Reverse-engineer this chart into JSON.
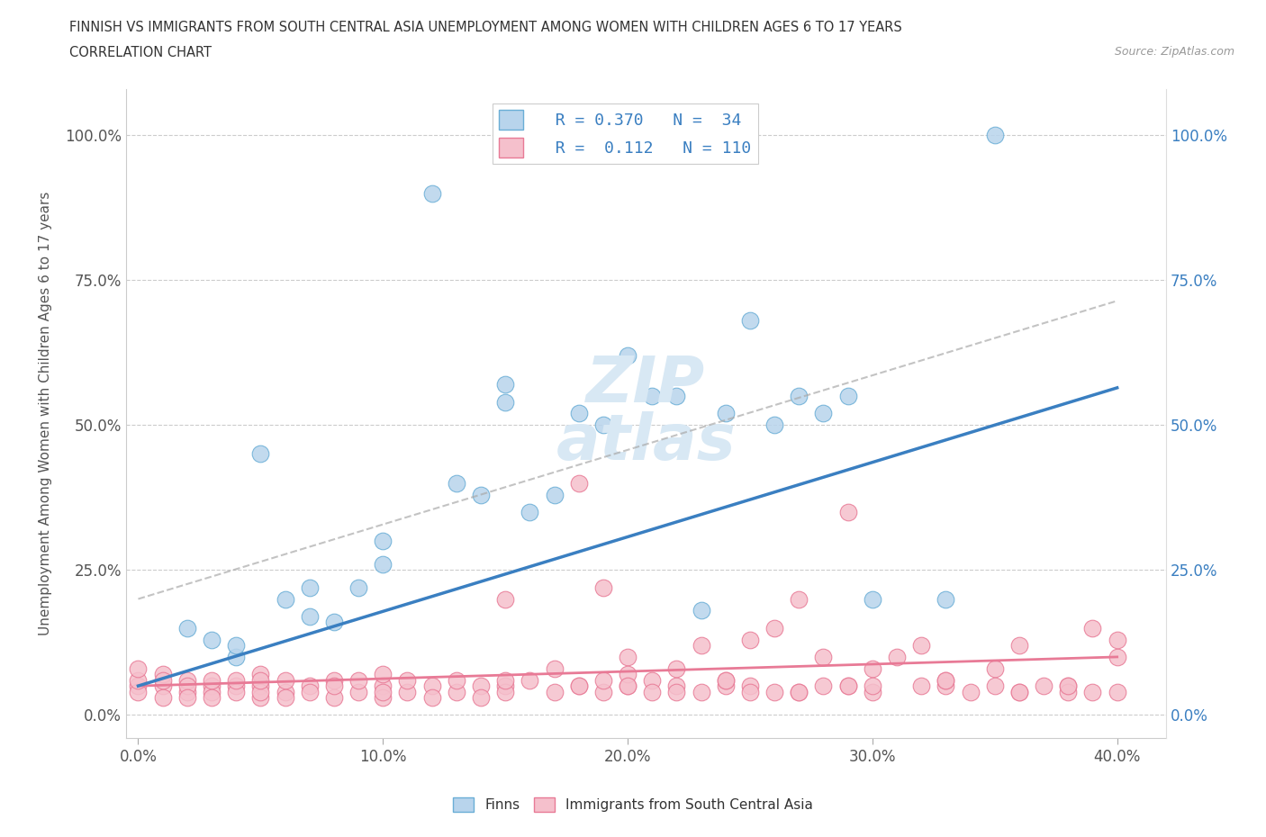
{
  "title_line1": "FINNISH VS IMMIGRANTS FROM SOUTH CENTRAL ASIA UNEMPLOYMENT AMONG WOMEN WITH CHILDREN AGES 6 TO 17 YEARS",
  "title_line2": "CORRELATION CHART",
  "source": "Source: ZipAtlas.com",
  "ylabel": "Unemployment Among Women with Children Ages 6 to 17 years",
  "xlim": [
    -0.005,
    0.42
  ],
  "ylim": [
    -0.04,
    1.08
  ],
  "xtick_labels": [
    "0.0%",
    "10.0%",
    "20.0%",
    "30.0%",
    "40.0%"
  ],
  "xtick_vals": [
    0.0,
    0.1,
    0.2,
    0.3,
    0.4
  ],
  "ytick_labels": [
    "0.0%",
    "25.0%",
    "50.0%",
    "75.0%",
    "100.0%"
  ],
  "ytick_vals": [
    0.0,
    0.25,
    0.5,
    0.75,
    1.0
  ],
  "legend_r1": "R = 0.370",
  "legend_n1": "N =  34",
  "legend_r2": "R =  0.112",
  "legend_n2": "N = 110",
  "color_finns_fill": "#b8d4ec",
  "color_finns_edge": "#6aaed6",
  "color_imm_fill": "#f5c0cc",
  "color_imm_edge": "#e87a96",
  "color_line_finns": "#3a7fc1",
  "color_line_imm": "#e87a96",
  "watermark_color": "#d8e8f4",
  "finns_x": [
    0.02,
    0.03,
    0.04,
    0.04,
    0.05,
    0.06,
    0.07,
    0.07,
    0.08,
    0.09,
    0.1,
    0.1,
    0.12,
    0.13,
    0.14,
    0.15,
    0.15,
    0.16,
    0.17,
    0.18,
    0.19,
    0.2,
    0.21,
    0.22,
    0.23,
    0.24,
    0.25,
    0.26,
    0.27,
    0.28,
    0.29,
    0.3,
    0.33,
    0.35
  ],
  "finns_y": [
    0.15,
    0.13,
    0.1,
    0.12,
    0.45,
    0.2,
    0.17,
    0.22,
    0.16,
    0.22,
    0.26,
    0.3,
    0.9,
    0.4,
    0.38,
    0.54,
    0.57,
    0.35,
    0.38,
    0.52,
    0.5,
    0.62,
    0.55,
    0.55,
    0.18,
    0.52,
    0.68,
    0.5,
    0.55,
    0.52,
    0.55,
    0.2,
    0.2,
    1.0
  ],
  "imm_x": [
    0.0,
    0.0,
    0.0,
    0.0,
    0.01,
    0.01,
    0.01,
    0.01,
    0.02,
    0.02,
    0.02,
    0.02,
    0.03,
    0.03,
    0.03,
    0.03,
    0.04,
    0.04,
    0.04,
    0.05,
    0.05,
    0.05,
    0.05,
    0.06,
    0.06,
    0.06,
    0.07,
    0.07,
    0.08,
    0.08,
    0.08,
    0.09,
    0.09,
    0.1,
    0.1,
    0.1,
    0.11,
    0.11,
    0.12,
    0.12,
    0.13,
    0.13,
    0.14,
    0.14,
    0.15,
    0.15,
    0.15,
    0.16,
    0.17,
    0.17,
    0.18,
    0.18,
    0.19,
    0.19,
    0.2,
    0.2,
    0.2,
    0.21,
    0.21,
    0.22,
    0.22,
    0.23,
    0.23,
    0.24,
    0.24,
    0.25,
    0.25,
    0.26,
    0.26,
    0.27,
    0.27,
    0.28,
    0.28,
    0.29,
    0.29,
    0.3,
    0.3,
    0.31,
    0.32,
    0.32,
    0.33,
    0.33,
    0.34,
    0.35,
    0.35,
    0.36,
    0.36,
    0.37,
    0.38,
    0.38,
    0.39,
    0.39,
    0.4,
    0.4,
    0.18,
    0.19,
    0.25,
    0.29,
    0.15,
    0.2,
    0.22,
    0.24,
    0.27,
    0.3,
    0.33,
    0.36,
    0.38,
    0.4,
    0.05,
    0.1
  ],
  "imm_y": [
    0.05,
    0.04,
    0.06,
    0.08,
    0.05,
    0.03,
    0.07,
    0.06,
    0.04,
    0.06,
    0.05,
    0.03,
    0.05,
    0.04,
    0.06,
    0.03,
    0.05,
    0.04,
    0.06,
    0.05,
    0.03,
    0.07,
    0.04,
    0.04,
    0.06,
    0.03,
    0.05,
    0.04,
    0.06,
    0.03,
    0.05,
    0.04,
    0.06,
    0.05,
    0.03,
    0.07,
    0.04,
    0.06,
    0.05,
    0.03,
    0.04,
    0.06,
    0.05,
    0.03,
    0.2,
    0.05,
    0.04,
    0.06,
    0.08,
    0.04,
    0.4,
    0.05,
    0.22,
    0.04,
    0.1,
    0.05,
    0.07,
    0.06,
    0.04,
    0.05,
    0.08,
    0.04,
    0.12,
    0.05,
    0.06,
    0.13,
    0.05,
    0.15,
    0.04,
    0.2,
    0.04,
    0.1,
    0.05,
    0.35,
    0.05,
    0.08,
    0.04,
    0.1,
    0.12,
    0.05,
    0.05,
    0.06,
    0.04,
    0.08,
    0.05,
    0.12,
    0.04,
    0.05,
    0.05,
    0.04,
    0.15,
    0.04,
    0.1,
    0.13,
    0.05,
    0.06,
    0.04,
    0.05,
    0.06,
    0.05,
    0.04,
    0.06,
    0.04,
    0.05,
    0.06,
    0.04,
    0.05,
    0.04,
    0.06,
    0.04
  ]
}
